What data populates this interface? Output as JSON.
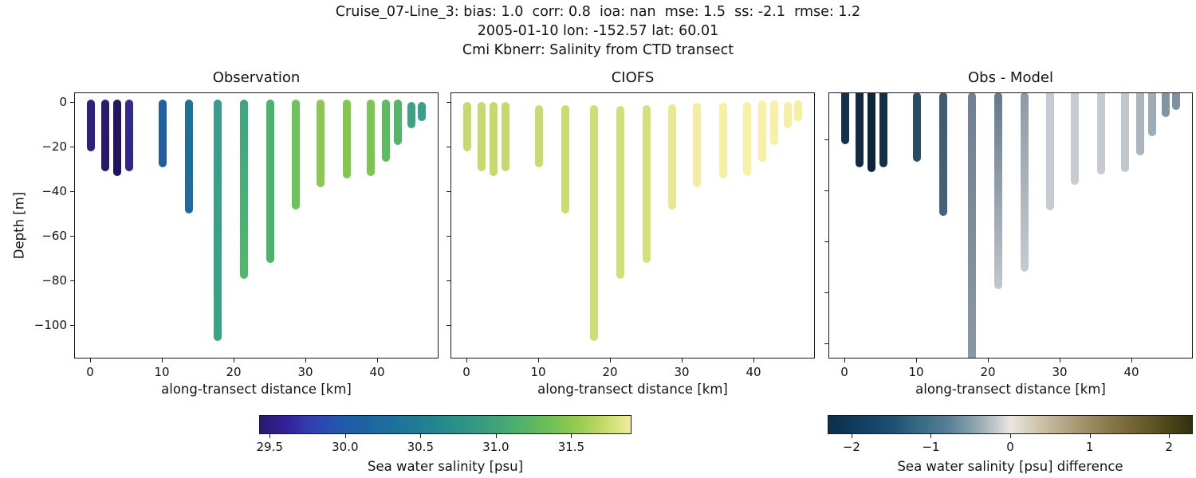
{
  "title": {
    "line1": "Cruise_07-Line_3: bias: 1.0  corr: 0.8  ioa: nan  mse: 1.5  ss: -2.1  rmse: 1.2",
    "line2": "2005-01-10 lon: -152.57 lat: 60.01",
    "line3": "Cmi Kbnerr: Salinity from CTD transect"
  },
  "axes": {
    "ylabel": "Depth [m]",
    "xlabel": "along-transect distance [km]",
    "yticks": [
      {
        "v": 0,
        "label": "0"
      },
      {
        "v": -20,
        "label": "−20"
      },
      {
        "v": -40,
        "label": "−40"
      },
      {
        "v": -60,
        "label": "−60"
      },
      {
        "v": -80,
        "label": "−80"
      },
      {
        "v": -100,
        "label": "−100"
      }
    ],
    "xticks": [
      {
        "v": 0,
        "label": "0"
      },
      {
        "v": 10,
        "label": "10"
      },
      {
        "v": 20,
        "label": "20"
      },
      {
        "v": 30,
        "label": "30"
      },
      {
        "v": 40,
        "label": "40"
      }
    ]
  },
  "chart_data": {
    "type": "scatter",
    "subtype": "ctd-transect-vertical-profiles",
    "description": "Three-panel salinity transect: observed CTD casts, CIOFS model casts, and obs-minus-model difference. Each vertical bar is one CTD cast colored by salinity (haline colormap) or by difference (diverging blue-white-olive colormap).",
    "xlabel": "along-transect distance [km]",
    "ylabel": "Depth [m]",
    "xlim": [
      -2.3,
      49.9
    ],
    "ylim_main": [
      4.5,
      -112
    ],
    "ylim_diff": [
      -1.5,
      -106.5
    ],
    "panels": [
      {
        "title": "Observation",
        "series_key": "obs"
      },
      {
        "title": "CIOFS",
        "series_key": "model"
      },
      {
        "title": "Obs - Model",
        "series_key": "diff"
      }
    ],
    "stations": [
      {
        "x_km": 0,
        "bottom_m": -20,
        "obs": {
          "top_m": 0,
          "psu": 29.6,
          "color_top": "#2e2080",
          "color_bottom": "#2e2080"
        },
        "model": {
          "top_m": -1,
          "psu": 31.67,
          "color_top": "#c6d96c",
          "color_bottom": "#c6d96c"
        },
        "diff": {
          "top_m": 0,
          "value": -2.1,
          "color_top": "#14314b",
          "color_bottom": "#14314b"
        }
      },
      {
        "x_km": 2,
        "bottom_m": -29,
        "obs": {
          "top_m": 0,
          "psu": 29.55,
          "color_top": "#2a1b72",
          "color_bottom": "#271865"
        },
        "model": {
          "top_m": -1,
          "psu": 31.67,
          "color_top": "#c6d96c",
          "color_bottom": "#c6d96c"
        },
        "diff": {
          "top_m": 0,
          "value": -2.1,
          "color_top": "#102b42",
          "color_bottom": "#102b42"
        }
      },
      {
        "x_km": 3.7,
        "bottom_m": -31,
        "obs": {
          "top_m": 0,
          "psu": 29.5,
          "color_top": "#241663",
          "color_bottom": "#21135c"
        },
        "model": {
          "top_m": -1,
          "psu": 31.67,
          "color_top": "#c6d96c",
          "color_bottom": "#c6d96c"
        },
        "diff": {
          "top_m": -1,
          "value": -2.2,
          "color_top": "#0d2536",
          "color_bottom": "#0d2536"
        }
      },
      {
        "x_km": 5.3,
        "bottom_m": -29,
        "obs": {
          "top_m": 0,
          "psu": 29.65,
          "color_top": "#342b94",
          "color_bottom": "#2f268a"
        },
        "model": {
          "top_m": -1,
          "psu": 31.67,
          "color_top": "#c6d96c",
          "color_bottom": "#c6d96c"
        },
        "diff": {
          "top_m": -1,
          "value": -2.0,
          "color_top": "#133049",
          "color_bottom": "#133049"
        }
      },
      {
        "x_km": 10,
        "bottom_m": -27,
        "obs": {
          "top_m": 0,
          "psu": 30.2,
          "color_top": "#2161a8",
          "color_bottom": "#1f5ca3"
        },
        "model": {
          "top_m": -2.5,
          "psu": 31.68,
          "color_top": "#c9da6e",
          "color_bottom": "#c9da6e"
        },
        "diff": {
          "top_m": -2.5,
          "value": -1.5,
          "color_top": "#2c4c64",
          "color_bottom": "#2c4c64"
        }
      },
      {
        "x_km": 13.7,
        "bottom_m": -48,
        "obs": {
          "top_m": 0,
          "psu": 30.4,
          "color_top": "#1f7295",
          "color_bottom": "#1d6b9d"
        },
        "model": {
          "top_m": -2.5,
          "psu": 31.7,
          "color_top": "#ccdc71",
          "color_bottom": "#ccdc71"
        },
        "diff": {
          "top_m": -2.5,
          "value": -1.3,
          "color_top": "#3d5b73",
          "color_bottom": "#44627a"
        }
      },
      {
        "x_km": 17.7,
        "bottom_m": -105,
        "obs": {
          "top_m": 0,
          "psu": 30.8,
          "color_top": "#399b8d",
          "color_bottom": "#3aa286"
        },
        "model": {
          "top_m": -2.5,
          "psu": 31.71,
          "color_top": "#cedd74",
          "color_bottom": "#cedd74"
        },
        "diff": {
          "top_m": -2.5,
          "value": -0.9,
          "color_top": "#6e8191",
          "color_bottom": "#8a98a3"
        }
      },
      {
        "x_km": 21.3,
        "bottom_m": -77,
        "obs": {
          "top_m": 0,
          "psu": 31.0,
          "color_top": "#3aa682",
          "color_bottom": "#52b86a"
        },
        "model": {
          "top_m": -3,
          "psu": 31.73,
          "color_top": "#d2df79",
          "color_bottom": "#d2df79"
        },
        "diff": {
          "top_m": -2.5,
          "value": -0.6,
          "color_top": "#64798b",
          "color_bottom": "#c0c7cd"
        }
      },
      {
        "x_km": 25,
        "bottom_m": -70,
        "obs": {
          "top_m": 0,
          "psu": 31.15,
          "color_top": "#4cb468",
          "color_bottom": "#4cb468"
        },
        "model": {
          "top_m": -2.5,
          "psu": 31.74,
          "color_top": "#d5e07d",
          "color_bottom": "#d5e07d"
        },
        "diff": {
          "top_m": -2.5,
          "value": -0.5,
          "color_top": "#8c9aa5",
          "color_bottom": "#c6cbd0"
        }
      },
      {
        "x_km": 28.6,
        "bottom_m": -46,
        "obs": {
          "top_m": 0,
          "psu": 31.33,
          "color_top": "#6fc25b",
          "color_bottom": "#6fc25b"
        },
        "model": {
          "top_m": -2,
          "psu": 31.81,
          "color_top": "#e9e791",
          "color_bottom": "#e9e791"
        },
        "diff": {
          "top_m": -2,
          "value": -0.4,
          "color_top": "#c5cbd0",
          "color_bottom": "#c5cbd0"
        }
      },
      {
        "x_km": 32,
        "bottom_m": -36,
        "obs": {
          "top_m": 0,
          "psu": 31.48,
          "color_top": "#8bc851",
          "color_bottom": "#8bc851"
        },
        "model": {
          "top_m": -1.5,
          "psu": 31.85,
          "color_top": "#f3ed9f",
          "color_bottom": "#f3ed9f"
        },
        "diff": {
          "top_m": -1.5,
          "value": -0.37,
          "color_top": "#c7ccd1",
          "color_bottom": "#c7ccd1"
        }
      },
      {
        "x_km": 35.7,
        "bottom_m": -32,
        "obs": {
          "top_m": 0,
          "psu": 31.45,
          "color_top": "#84c74f",
          "color_bottom": "#84c74f"
        },
        "model": {
          "top_m": -1.5,
          "psu": 31.87,
          "color_top": "#f7efa3",
          "color_bottom": "#f7efa3"
        },
        "diff": {
          "top_m": -1.5,
          "value": -0.42,
          "color_top": "#c5cbd0",
          "color_bottom": "#c5cbd0"
        }
      },
      {
        "x_km": 39,
        "bottom_m": -31,
        "obs": {
          "top_m": 0,
          "psu": 31.42,
          "color_top": "#7cc553",
          "color_bottom": "#7cc553"
        },
        "model": {
          "top_m": -1,
          "psu": 31.87,
          "color_top": "#f8f0a5",
          "color_bottom": "#f8f0a5"
        },
        "diff": {
          "top_m": -1,
          "value": -0.45,
          "color_top": "#c0c7cd",
          "color_bottom": "#c0c7cd"
        }
      },
      {
        "x_km": 41.1,
        "bottom_m": -24.5,
        "obs": {
          "top_m": 0,
          "psu": 31.24,
          "color_top": "#5dbb62",
          "color_bottom": "#5dbb62"
        },
        "model": {
          "top_m": -0.5,
          "psu": 31.87,
          "color_top": "#f8f0a6",
          "color_bottom": "#f8f0a6"
        },
        "diff": {
          "top_m": -1,
          "value": -0.63,
          "color_top": "#aab6c0",
          "color_bottom": "#aab6c0"
        }
      },
      {
        "x_km": 42.8,
        "bottom_m": -17,
        "obs": {
          "top_m": 0,
          "psu": 31.18,
          "color_top": "#54b56a",
          "color_bottom": "#54b56a"
        },
        "model": {
          "top_m": -0.5,
          "psu": 31.87,
          "color_top": "#f8f0a6",
          "color_bottom": "#f8f0a6"
        },
        "diff": {
          "top_m": -1,
          "value": -0.7,
          "color_top": "#9dacb7",
          "color_bottom": "#9dacb7"
        }
      },
      {
        "x_km": 44.7,
        "bottom_m": -9.5,
        "obs": {
          "top_m": -1,
          "psu": 30.85,
          "color_top": "#3ba286",
          "color_bottom": "#3ba286"
        },
        "model": {
          "top_m": -1,
          "psu": 31.86,
          "color_top": "#f7efa4",
          "color_bottom": "#f7efa4"
        },
        "diff": {
          "top_m": -1.5,
          "value": -1.0,
          "color_top": "#8196a4",
          "color_bottom": "#8196a4"
        }
      },
      {
        "x_km": 46.1,
        "bottom_m": -6.5,
        "obs": {
          "top_m": -1,
          "psu": 30.8,
          "color_top": "#37a18b",
          "color_bottom": "#37a18b"
        },
        "model": {
          "top_m": -0.5,
          "psu": 31.86,
          "color_top": "#f6efa2",
          "color_bottom": "#f6efa2"
        },
        "diff": {
          "top_m": -1,
          "value": -1.05,
          "color_top": "#7e92a1",
          "color_bottom": "#7e92a1"
        }
      }
    ],
    "colorbars": [
      {
        "label": "Sea water salinity [psu]",
        "vmin": 29.43,
        "vmax": 31.9,
        "ticks": [
          {
            "v": 29.5,
            "label": "29.5"
          },
          {
            "v": 30.0,
            "label": "30.0"
          },
          {
            "v": 30.5,
            "label": "30.5"
          },
          {
            "v": 31.0,
            "label": "31.0"
          },
          {
            "v": 31.5,
            "label": "31.5"
          }
        ],
        "gradient": [
          {
            "p": 0.0,
            "c": "#291a6e"
          },
          {
            "p": 0.07,
            "c": "#33219a"
          },
          {
            "p": 0.14,
            "c": "#3140b2"
          },
          {
            "p": 0.21,
            "c": "#2355ad"
          },
          {
            "p": 0.29,
            "c": "#1e64a0"
          },
          {
            "p": 0.37,
            "c": "#1d7399"
          },
          {
            "p": 0.45,
            "c": "#218191"
          },
          {
            "p": 0.53,
            "c": "#2b9088"
          },
          {
            "p": 0.61,
            "c": "#399e7e"
          },
          {
            "p": 0.69,
            "c": "#4dae6e"
          },
          {
            "p": 0.77,
            "c": "#69bd5b"
          },
          {
            "p": 0.84,
            "c": "#8cc84f"
          },
          {
            "p": 0.91,
            "c": "#b7d560"
          },
          {
            "p": 0.96,
            "c": "#d9e37f"
          },
          {
            "p": 1.0,
            "c": "#f2eb9c"
          }
        ]
      },
      {
        "label": "Sea water salinity [psu] difference",
        "vmin": -2.3,
        "vmax": 2.3,
        "ticks": [
          {
            "v": -2,
            "label": "−2"
          },
          {
            "v": -1,
            "label": "−1"
          },
          {
            "v": 0,
            "label": "0"
          },
          {
            "v": 1,
            "label": "1"
          },
          {
            "v": 2,
            "label": "2"
          }
        ],
        "gradient": [
          {
            "p": 0.0,
            "c": "#0d2f4f"
          },
          {
            "p": 0.09,
            "c": "#123e60"
          },
          {
            "p": 0.17,
            "c": "#1d4f70"
          },
          {
            "p": 0.25,
            "c": "#366a85"
          },
          {
            "p": 0.33,
            "c": "#587f97"
          },
          {
            "p": 0.4,
            "c": "#8ba2af"
          },
          {
            "p": 0.46,
            "c": "#c2c8cb"
          },
          {
            "p": 0.5,
            "c": "#eae7e2"
          },
          {
            "p": 0.55,
            "c": "#d8cfbd"
          },
          {
            "p": 0.63,
            "c": "#bcae90"
          },
          {
            "p": 0.71,
            "c": "#a08e68"
          },
          {
            "p": 0.79,
            "c": "#837246"
          },
          {
            "p": 0.87,
            "c": "#675b2c"
          },
          {
            "p": 0.94,
            "c": "#4a4419"
          },
          {
            "p": 1.0,
            "c": "#32300e"
          }
        ]
      }
    ]
  }
}
